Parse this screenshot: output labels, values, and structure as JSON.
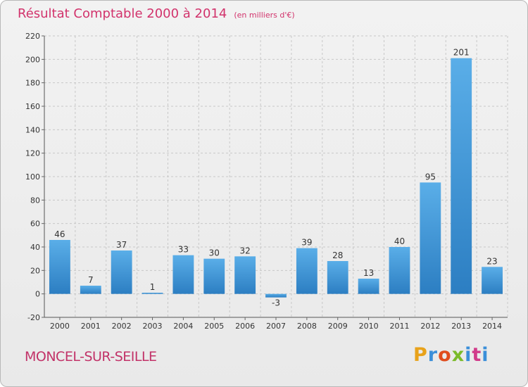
{
  "title": "Résultat Comptable 2000 à 2014",
  "subtitle": "(en milliers d'€)",
  "location": "MONCEL-SUR-SEILLE",
  "brand": {
    "text": "Proxiti",
    "letters": [
      "P",
      "r",
      "o",
      "x",
      "i",
      "t",
      "i"
    ],
    "colors": [
      "#e8a21a",
      "#3b8fd9",
      "#e04d1e",
      "#7bbb2a",
      "#3b8fd9",
      "#d13b8a",
      "#3b8fd9"
    ]
  },
  "colors": {
    "title": "#d2336c",
    "bar_light": "#5aaee8",
    "bar_dark": "#2c7ec2",
    "grid": "#c8c8c8"
  },
  "chart_data": {
    "type": "bar",
    "categories": [
      "2000",
      "2001",
      "2002",
      "2003",
      "2004",
      "2005",
      "2006",
      "2007",
      "2008",
      "2009",
      "2010",
      "2011",
      "2012",
      "2013",
      "2014"
    ],
    "values": [
      46,
      7,
      37,
      1,
      33,
      30,
      32,
      -3,
      39,
      28,
      13,
      40,
      95,
      201,
      23
    ],
    "title": "Résultat Comptable 2000 à 2014",
    "subtitle": "(en milliers d'€)",
    "ylim": [
      -20,
      220
    ],
    "yticks": [
      -20,
      0,
      20,
      40,
      60,
      80,
      100,
      120,
      140,
      160,
      180,
      200,
      220
    ],
    "grid": true
  }
}
